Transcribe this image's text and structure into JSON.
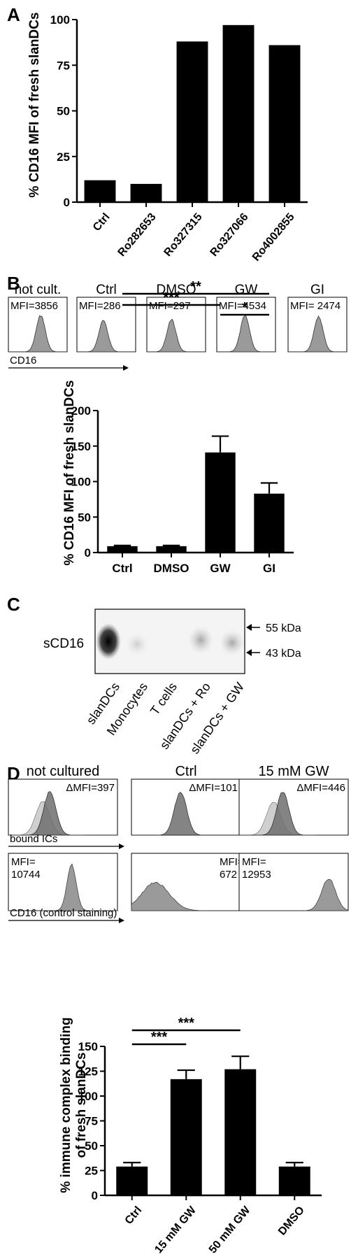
{
  "panel_labels": {
    "a": "A",
    "b": "B",
    "c": "C",
    "d": "D"
  },
  "chart_data": [
    {
      "id": "A",
      "type": "bar",
      "ylabel": "% CD16 MFI of fresh slanDCs",
      "ylim": [
        0,
        100
      ],
      "yticks": [
        0,
        25,
        50,
        75,
        100
      ],
      "categories": [
        "Ctrl",
        "Ro282653",
        "Ro327315",
        "Ro327066",
        "Ro4002855"
      ],
      "values": [
        12,
        10,
        88,
        97,
        86
      ]
    },
    {
      "id": "B",
      "type": "bar",
      "ylabel": "% CD16 MFI of fresh slanDCs",
      "ylim": [
        0,
        200
      ],
      "yticks": [
        0,
        50,
        100,
        150,
        200
      ],
      "categories": [
        "Ctrl",
        "DMSO",
        "GW",
        "GI"
      ],
      "values": [
        9,
        9,
        141,
        83
      ],
      "errors": [
        1,
        1,
        23,
        15
      ],
      "significance": [
        {
          "from": "Ctrl",
          "to": "GW",
          "label": "***"
        },
        {
          "from": "Ctrl",
          "to": "GI",
          "label": "**"
        },
        {
          "from": "GW",
          "to": "GI",
          "label": "*"
        }
      ]
    },
    {
      "id": "D",
      "type": "bar",
      "ylabel": "% immune complex binding of fresh slanDCs",
      "ylim": [
        0,
        150
      ],
      "yticks": [
        0,
        25,
        50,
        75,
        100,
        125,
        150
      ],
      "categories": [
        "Ctrl",
        "15 mM GW",
        "50 mM GW",
        "DMSO"
      ],
      "values": [
        29,
        117,
        127,
        29
      ],
      "errors": [
        4,
        9,
        13,
        4
      ],
      "significance": [
        {
          "from": "Ctrl",
          "to": "15 mM GW",
          "label": "***"
        },
        {
          "from": "Ctrl",
          "to": "50 mM GW",
          "label": "***"
        }
      ]
    }
  ],
  "panel_b_histograms": {
    "titles": [
      "not cult.",
      "Ctrl",
      "DMSO",
      "GW",
      "GI"
    ],
    "mfi": [
      "MFI=3856",
      "MFI=286",
      "MFI=297",
      "MFI=4534",
      "MFI= 2474"
    ],
    "axis_label": "CD16"
  },
  "panel_c_blot": {
    "row_label": "sCD16",
    "lanes": [
      "slanDCs",
      "Monocytes",
      "T cells",
      "slanDCs + Ro",
      "slanDCs + GW"
    ],
    "markers": [
      "55 kDa",
      "43 kDa"
    ]
  },
  "panel_d_histograms": {
    "titles": [
      "not cultured",
      "Ctrl",
      "15 mM GW"
    ],
    "delta_mfi": [
      "ΔMFI=397",
      "ΔMFI=101",
      "ΔMFI=446"
    ],
    "row1_axis_label": "bound ICs",
    "mfi_top": [
      "MFI=",
      "MFI=",
      "MFI="
    ],
    "mfi_values": [
      "10744",
      "672",
      "12953"
    ],
    "row2_axis_label": "CD16 (control staining)"
  }
}
